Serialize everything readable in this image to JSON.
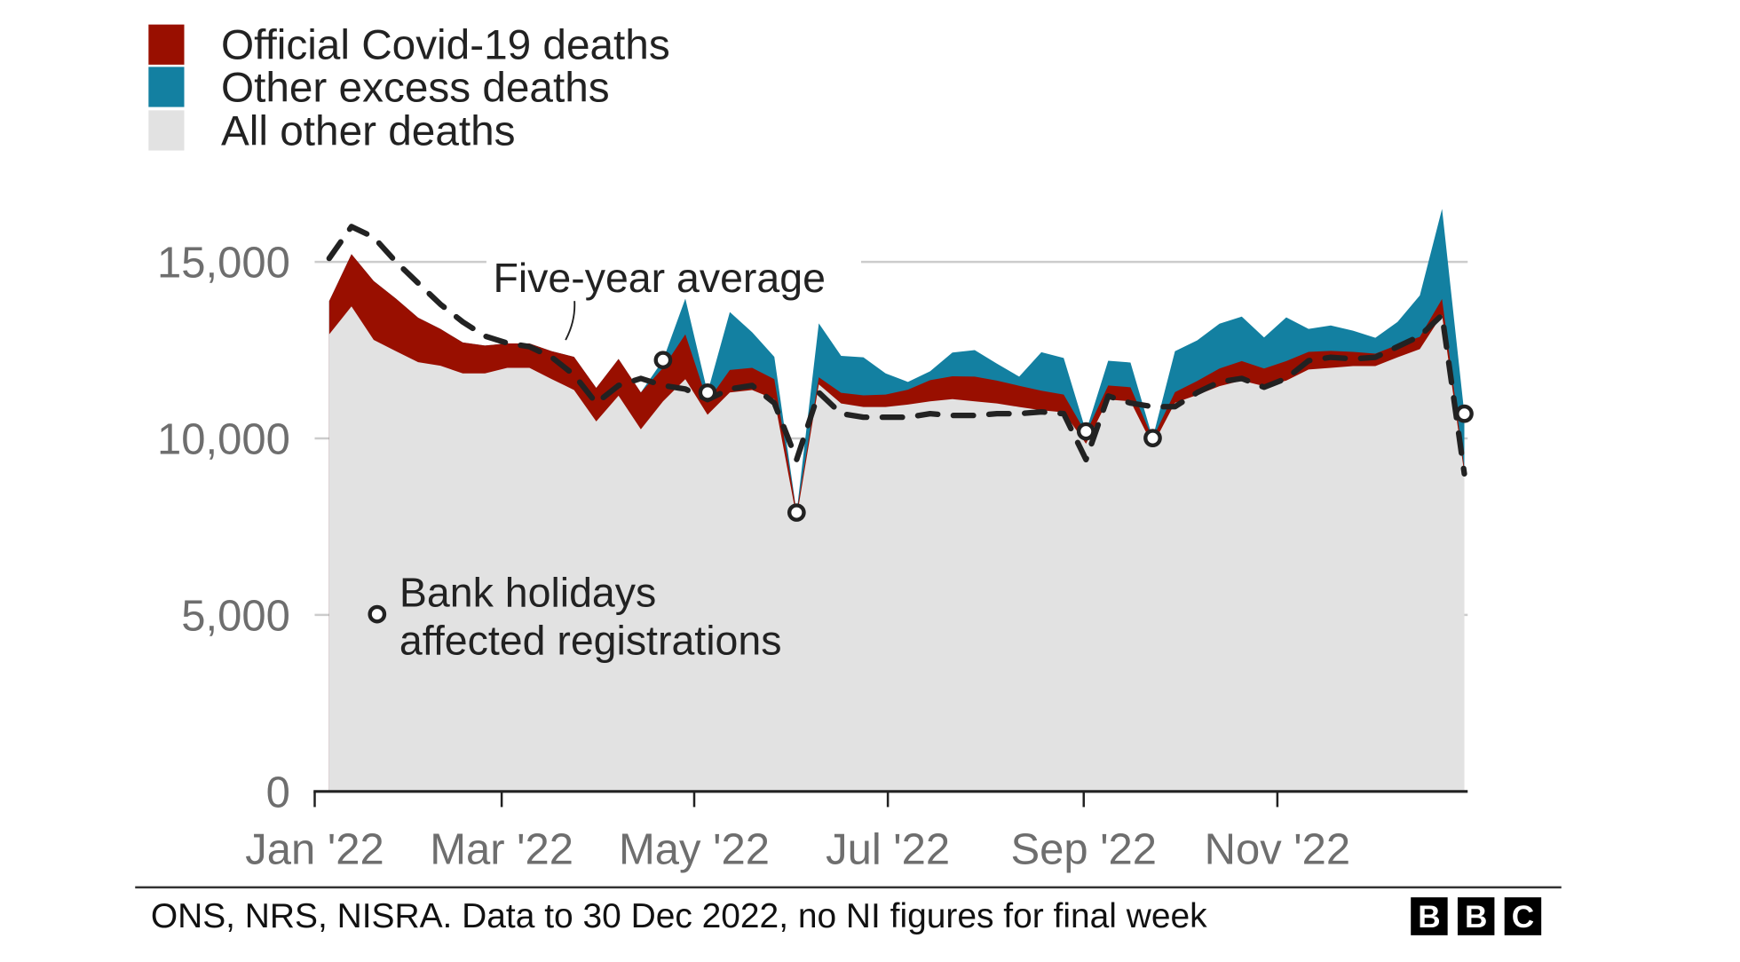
{
  "chart_data": {
    "type": "area",
    "title": "",
    "xlabel": "",
    "ylabel": "",
    "ylim": [
      0,
      16500
    ],
    "grid": true,
    "legend_placement": "top-left",
    "x_note": "weekly, week 1 to week 52 of 2022",
    "weeks": [
      1,
      2,
      3,
      4,
      5,
      6,
      7,
      8,
      9,
      10,
      11,
      12,
      13,
      14,
      15,
      16,
      17,
      18,
      19,
      20,
      21,
      22,
      23,
      24,
      25,
      26,
      27,
      28,
      29,
      30,
      31,
      32,
      33,
      34,
      35,
      36,
      37,
      38,
      39,
      40,
      41,
      42,
      43,
      44,
      45,
      46,
      47,
      48,
      49,
      50,
      51,
      52
    ],
    "x_tick_labels": [
      "Jan '22",
      "Mar '22",
      "May '22",
      "Jul '22",
      "Sep '22",
      "Nov '22"
    ],
    "x_tick_weeks": [
      0.35,
      8.75,
      17.4,
      26.1,
      34.9,
      43.6
    ],
    "y_ticks": [
      0,
      5000,
      10000,
      15000
    ],
    "y_tick_labels": [
      "0",
      "5,000",
      "10,000",
      "15,000"
    ],
    "series": [
      {
        "name": "All other deaths",
        "color": "#e2e2e2",
        "values": [
          12950,
          13740,
          12790,
          12470,
          12160,
          12060,
          11840,
          11840,
          12000,
          12000,
          11680,
          11370,
          10480,
          11210,
          10260,
          11050,
          11680,
          10670,
          11300,
          11370,
          11110,
          7750,
          11530,
          10990,
          10890,
          10890,
          10960,
          11050,
          11110,
          11050,
          10990,
          10890,
          10800,
          10740,
          9850,
          11100,
          11050,
          9800,
          11010,
          11230,
          11480,
          11640,
          11480,
          11640,
          11950,
          12000,
          12050,
          12050,
          12300,
          12530,
          13500,
          9000
        ]
      },
      {
        "name": "Official Covid-19 deaths",
        "color": "#990f00",
        "values": [
          940,
          1480,
          1670,
          1490,
          1260,
          1040,
          880,
          790,
          690,
          690,
          790,
          940,
          950,
          1040,
          1040,
          950,
          1270,
          380,
          640,
          630,
          570,
          150,
          200,
          300,
          330,
          350,
          420,
          600,
          650,
          700,
          650,
          600,
          550,
          500,
          300,
          400,
          400,
          200,
          300,
          400,
          500,
          550,
          500,
          550,
          500,
          480,
          400,
          350,
          350,
          350,
          450,
          150
        ]
      },
      {
        "name": "Other excess deaths",
        "color": "#1380a1",
        "values": [
          0,
          0,
          0,
          0,
          0,
          0,
          0,
          0,
          0,
          0,
          0,
          0,
          0,
          0,
          0,
          220,
          1010,
          250,
          1640,
          1010,
          630,
          0,
          1530,
          1050,
          1080,
          600,
          220,
          250,
          670,
          750,
          480,
          260,
          1090,
          1040,
          50,
          700,
          700,
          10,
          1160,
          1150,
          1270,
          1260,
          880,
          1240,
          650,
          720,
          600,
          450,
          650,
          1170,
          2550,
          1550
        ]
      }
    ],
    "five_year_average": {
      "name": "Five-year average",
      "values": [
        15100,
        16000,
        15700,
        15000,
        14400,
        13800,
        13300,
        12900,
        12700,
        12600,
        12300,
        11800,
        11000,
        11500,
        11700,
        11500,
        11400,
        11100,
        11400,
        11500,
        11000,
        9400,
        11300,
        10700,
        10600,
        10600,
        10600,
        10700,
        10650,
        10650,
        10700,
        10700,
        10750,
        10700,
        9400,
        11200,
        11000,
        10900,
        10900,
        11300,
        11600,
        11700,
        11450,
        11700,
        12200,
        12300,
        12250,
        12300,
        12600,
        12900,
        13500,
        9000
      ]
    },
    "bank_holiday_weeks": [
      16,
      18,
      22,
      35,
      38,
      52
    ],
    "legend": [
      "Official Covid-19 deaths",
      "Other excess deaths",
      "All other deaths"
    ],
    "annotations": {
      "five_year": "Five-year average",
      "bank_line1": "Bank holidays",
      "bank_line2": "affected registrations"
    }
  },
  "footer": {
    "source": "ONS, NRS, NISRA. Data to 30 Dec 2022, no NI figures for final week",
    "logo": [
      "B",
      "B",
      "C"
    ]
  }
}
